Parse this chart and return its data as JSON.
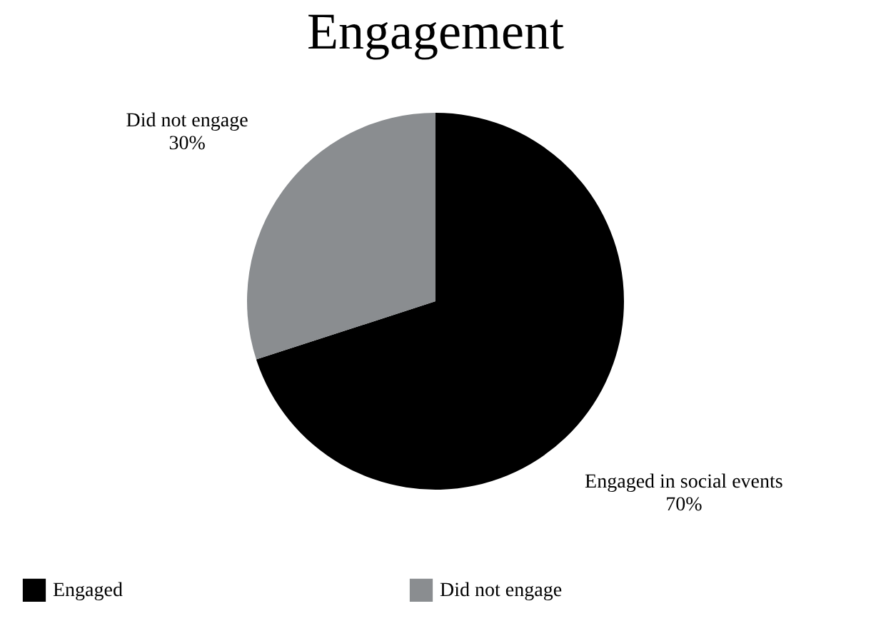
{
  "chart_data": {
    "type": "pie",
    "title": "Engagement",
    "categories": [
      "Engaged",
      "Did not engage"
    ],
    "values": [
      70,
      30
    ],
    "colors": [
      "#000000",
      "#8a8d90"
    ],
    "value_labels": [
      "70%",
      "30%"
    ],
    "annotations": [
      "Engaged in social events",
      "Did not engage"
    ],
    "legend": "bottom"
  }
}
